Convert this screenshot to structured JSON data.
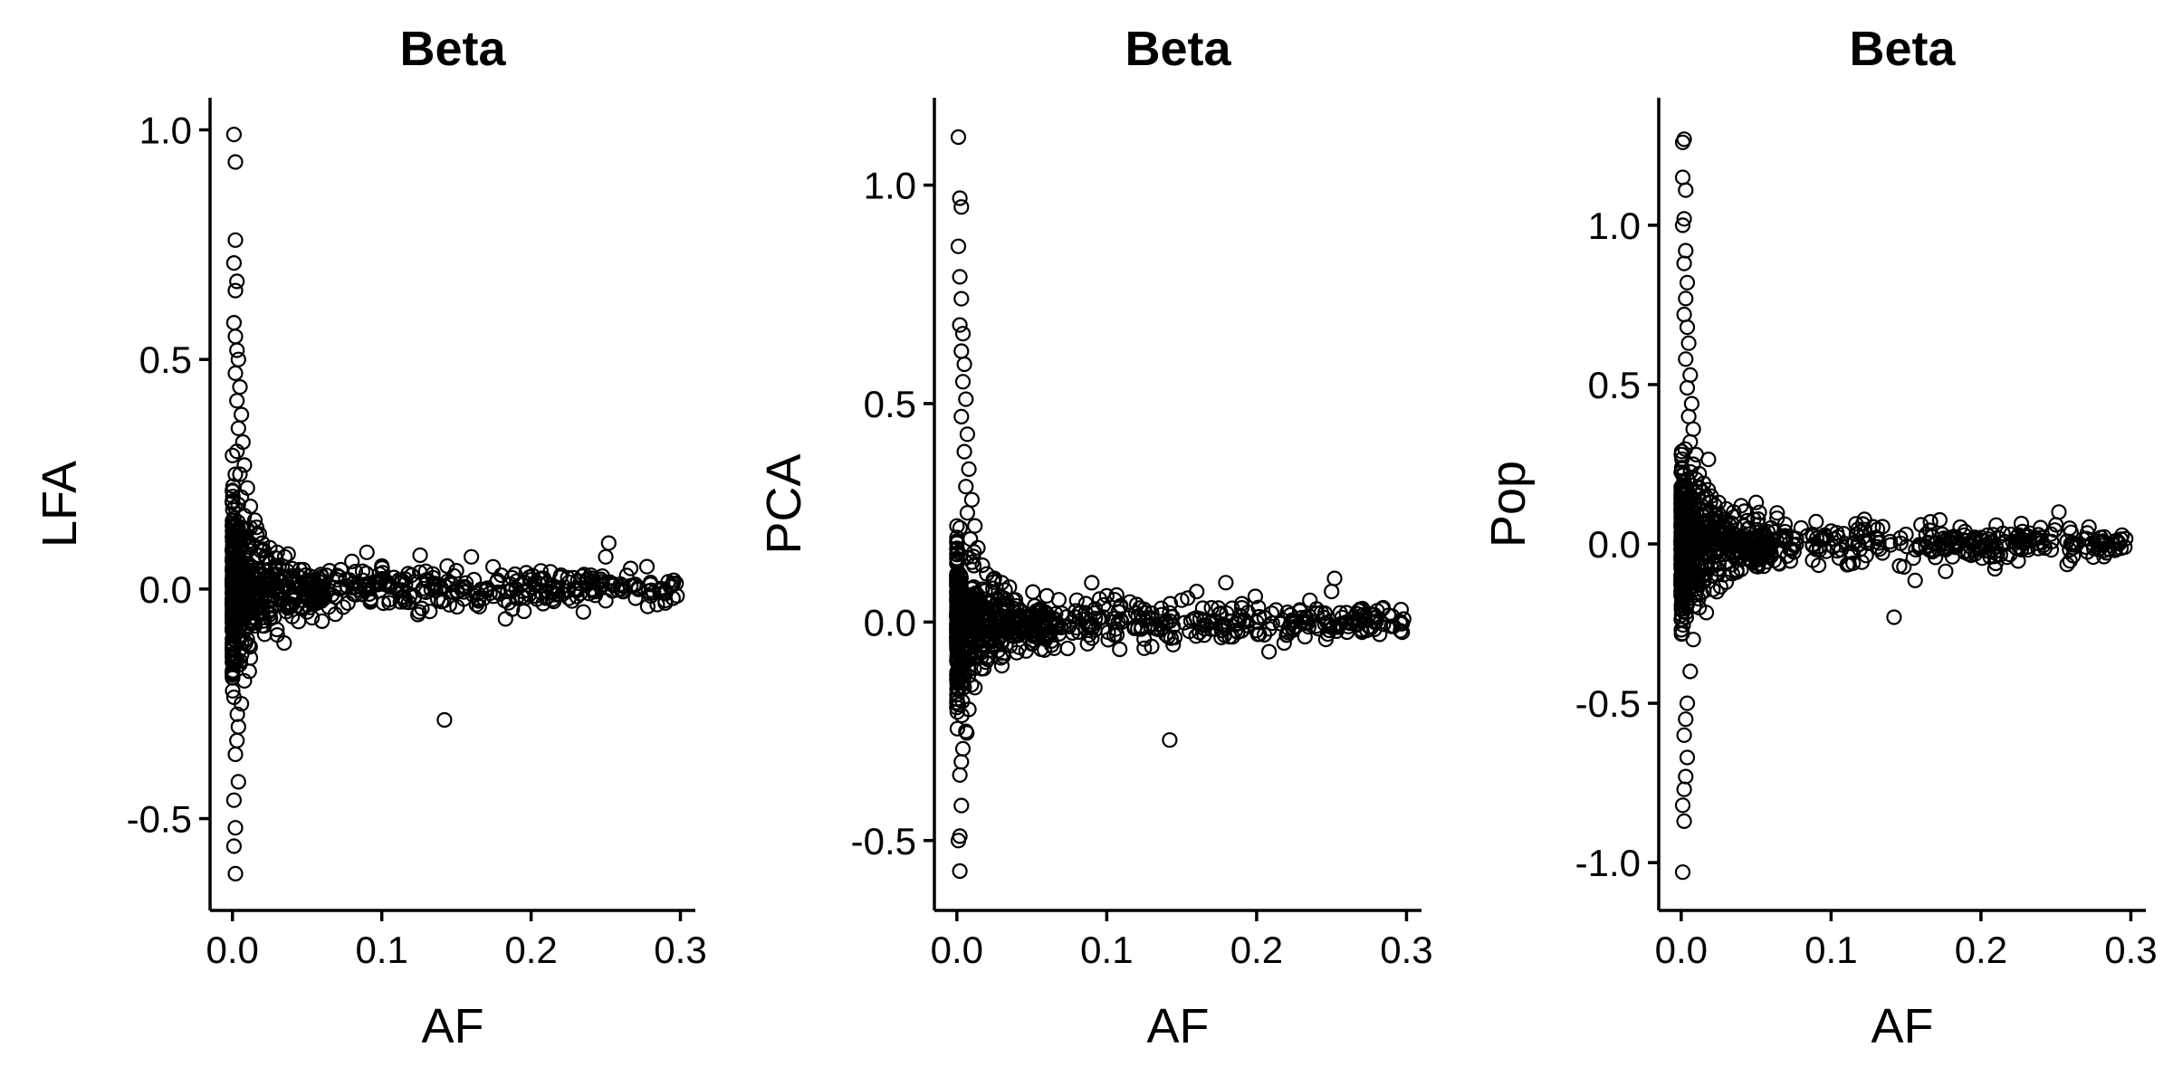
{
  "chart_data": [
    {
      "type": "scatter",
      "title": "Beta",
      "xlabel": "AF",
      "ylabel": "LFA",
      "xlim": [
        -0.015,
        0.31
      ],
      "ylim": [
        -0.7,
        1.07
      ],
      "x_ticks": [
        "0.0",
        "0.1",
        "0.2",
        "0.3"
      ],
      "x_tick_values": [
        0.0,
        0.1,
        0.2,
        0.3
      ],
      "y_ticks": [
        "-0.5",
        "0.0",
        "0.5",
        "1.0"
      ],
      "y_tick_values": [
        -0.5,
        0.0,
        0.5,
        1.0
      ],
      "grid": false,
      "marker": "open-circle",
      "points": [
        [
          0.001,
          0.99
        ],
        [
          0.002,
          0.93
        ],
        [
          0.002,
          0.76
        ],
        [
          0.001,
          0.71
        ],
        [
          0.003,
          0.67
        ],
        [
          0.002,
          0.65
        ],
        [
          0.001,
          0.58
        ],
        [
          0.002,
          0.55
        ],
        [
          0.003,
          0.52
        ],
        [
          0.004,
          0.5
        ],
        [
          0.002,
          0.47
        ],
        [
          0.005,
          0.44
        ],
        [
          0.003,
          0.41
        ],
        [
          0.006,
          0.38
        ],
        [
          0.004,
          0.35
        ],
        [
          0.007,
          0.32
        ],
        [
          0.003,
          0.3
        ],
        [
          0.008,
          0.27
        ],
        [
          0.005,
          0.25
        ],
        [
          0.01,
          0.22
        ],
        [
          0.006,
          0.2
        ],
        [
          0.012,
          0.18
        ],
        [
          0.008,
          0.16
        ],
        [
          0.015,
          0.15
        ],
        [
          0.01,
          0.13
        ],
        [
          0.018,
          0.12
        ],
        [
          0.02,
          0.1
        ],
        [
          0.025,
          0.09
        ],
        [
          0.03,
          0.08
        ],
        [
          0.035,
          0.07
        ],
        [
          0.012,
          -0.15
        ],
        [
          0.008,
          -0.2
        ],
        [
          0.006,
          -0.25
        ],
        [
          0.004,
          -0.3
        ],
        [
          0.003,
          -0.33
        ],
        [
          0.002,
          -0.36
        ],
        [
          0.004,
          -0.42
        ],
        [
          0.001,
          -0.46
        ],
        [
          0.002,
          -0.52
        ],
        [
          0.001,
          -0.56
        ],
        [
          0.002,
          -0.62
        ],
        [
          0.02,
          -0.08
        ],
        [
          0.03,
          -0.1
        ],
        [
          0.04,
          -0.06
        ],
        [
          0.05,
          -0.05
        ],
        [
          0.06,
          -0.07
        ],
        [
          0.065,
          0.04
        ],
        [
          0.07,
          0.02
        ],
        [
          0.08,
          0.06
        ],
        [
          0.09,
          0.08
        ],
        [
          0.1,
          0.05
        ],
        [
          0.105,
          -0.03
        ],
        [
          0.11,
          0.0
        ],
        [
          0.12,
          0.03
        ],
        [
          0.125,
          -0.05
        ],
        [
          0.13,
          0.02
        ],
        [
          0.14,
          0.0
        ],
        [
          0.142,
          -0.285
        ],
        [
          0.15,
          0.04
        ],
        [
          0.16,
          0.07
        ],
        [
          0.165,
          -0.02
        ],
        [
          0.17,
          0.0
        ],
        [
          0.18,
          0.03
        ],
        [
          0.185,
          -0.03
        ],
        [
          0.19,
          0.0
        ],
        [
          0.2,
          0.02
        ],
        [
          0.21,
          -0.02
        ],
        [
          0.22,
          0.03
        ],
        [
          0.23,
          0.0
        ],
        [
          0.235,
          -0.05
        ],
        [
          0.24,
          0.03
        ],
        [
          0.25,
          0.07
        ],
        [
          0.252,
          0.1
        ],
        [
          0.26,
          0.0
        ],
        [
          0.27,
          -0.02
        ],
        [
          0.28,
          0.01
        ],
        [
          0.29,
          -0.01
        ],
        [
          0.295,
          -0.02
        ]
      ]
    },
    {
      "type": "scatter",
      "title": "Beta",
      "xlabel": "AF",
      "ylabel": "PCA",
      "xlim": [
        -0.015,
        0.31
      ],
      "ylim": [
        -0.66,
        1.2
      ],
      "x_ticks": [
        "0.0",
        "0.1",
        "0.2",
        "0.3"
      ],
      "x_tick_values": [
        0.0,
        0.1,
        0.2,
        0.3
      ],
      "y_ticks": [
        "-0.5",
        "0.0",
        "0.5",
        "1.0"
      ],
      "y_tick_values": [
        -0.5,
        0.0,
        0.5,
        1.0
      ],
      "grid": false,
      "marker": "open-circle",
      "points": [
        [
          0.001,
          1.11
        ],
        [
          0.002,
          0.97
        ],
        [
          0.003,
          0.95
        ],
        [
          0.001,
          0.86
        ],
        [
          0.002,
          0.79
        ],
        [
          0.003,
          0.74
        ],
        [
          0.002,
          0.68
        ],
        [
          0.004,
          0.66
        ],
        [
          0.003,
          0.62
        ],
        [
          0.005,
          0.59
        ],
        [
          0.004,
          0.55
        ],
        [
          0.006,
          0.51
        ],
        [
          0.003,
          0.47
        ],
        [
          0.007,
          0.43
        ],
        [
          0.005,
          0.39
        ],
        [
          0.008,
          0.35
        ],
        [
          0.006,
          0.31
        ],
        [
          0.01,
          0.28
        ],
        [
          0.007,
          0.25
        ],
        [
          0.012,
          0.22
        ],
        [
          0.009,
          0.19
        ],
        [
          0.014,
          0.17
        ],
        [
          0.011,
          0.15
        ],
        [
          0.017,
          0.13
        ],
        [
          0.02,
          0.11
        ],
        [
          0.025,
          0.1
        ],
        [
          0.03,
          0.09
        ],
        [
          0.035,
          0.08
        ],
        [
          0.012,
          -0.15
        ],
        [
          0.008,
          -0.2
        ],
        [
          0.006,
          -0.25
        ],
        [
          0.004,
          -0.29
        ],
        [
          0.003,
          -0.32
        ],
        [
          0.002,
          -0.35
        ],
        [
          0.003,
          -0.42
        ],
        [
          0.002,
          -0.49
        ],
        [
          0.001,
          -0.5
        ],
        [
          0.002,
          -0.57
        ],
        [
          0.02,
          -0.08
        ],
        [
          0.03,
          -0.1
        ],
        [
          0.04,
          -0.07
        ],
        [
          0.05,
          -0.05
        ],
        [
          0.06,
          0.06
        ],
        [
          0.065,
          -0.06
        ],
        [
          0.07,
          0.02
        ],
        [
          0.08,
          0.05
        ],
        [
          0.09,
          0.09
        ],
        [
          0.1,
          0.06
        ],
        [
          0.105,
          -0.03
        ],
        [
          0.11,
          0.0
        ],
        [
          0.12,
          0.04
        ],
        [
          0.125,
          -0.06
        ],
        [
          0.13,
          0.02
        ],
        [
          0.14,
          0.0
        ],
        [
          0.142,
          -0.27
        ],
        [
          0.15,
          0.05
        ],
        [
          0.16,
          0.07
        ],
        [
          0.165,
          -0.03
        ],
        [
          0.17,
          0.0
        ],
        [
          0.18,
          0.02
        ],
        [
          0.19,
          -0.02
        ],
        [
          0.2,
          0.0
        ],
        [
          0.21,
          0.02
        ],
        [
          0.22,
          -0.03
        ],
        [
          0.23,
          0.01
        ],
        [
          0.24,
          0.03
        ],
        [
          0.25,
          0.07
        ],
        [
          0.252,
          0.1
        ],
        [
          0.26,
          0.0
        ],
        [
          0.27,
          -0.02
        ],
        [
          0.28,
          0.01
        ],
        [
          0.29,
          -0.01
        ],
        [
          0.296,
          -0.02
        ]
      ]
    },
    {
      "type": "scatter",
      "title": "Beta",
      "xlabel": "AF",
      "ylabel": "Pop",
      "xlim": [
        -0.015,
        0.31
      ],
      "ylim": [
        -1.15,
        1.4
      ],
      "x_ticks": [
        "0.0",
        "0.1",
        "0.2",
        "0.3"
      ],
      "x_tick_values": [
        0.0,
        0.1,
        0.2,
        0.3
      ],
      "y_ticks": [
        "-1.0",
        "-0.5",
        "0.0",
        "0.5",
        "1.0"
      ],
      "y_tick_values": [
        -1.0,
        -0.5,
        0.0,
        0.5,
        1.0
      ],
      "grid": false,
      "marker": "open-circle",
      "points": [
        [
          0.001,
          1.26
        ],
        [
          0.002,
          1.27
        ],
        [
          0.001,
          1.15
        ],
        [
          0.003,
          1.11
        ],
        [
          0.002,
          1.02
        ],
        [
          0.001,
          1.0
        ],
        [
          0.003,
          0.92
        ],
        [
          0.002,
          0.88
        ],
        [
          0.004,
          0.82
        ],
        [
          0.003,
          0.77
        ],
        [
          0.002,
          0.72
        ],
        [
          0.004,
          0.68
        ],
        [
          0.005,
          0.63
        ],
        [
          0.003,
          0.58
        ],
        [
          0.006,
          0.53
        ],
        [
          0.004,
          0.49
        ],
        [
          0.007,
          0.44
        ],
        [
          0.005,
          0.4
        ],
        [
          0.008,
          0.36
        ],
        [
          0.006,
          0.32
        ],
        [
          0.01,
          0.28
        ],
        [
          0.008,
          0.25
        ],
        [
          0.012,
          0.22
        ],
        [
          0.015,
          0.19
        ],
        [
          0.018,
          0.17
        ],
        [
          0.02,
          0.15
        ],
        [
          0.025,
          0.13
        ],
        [
          0.03,
          0.11
        ],
        [
          0.035,
          0.1
        ],
        [
          0.04,
          0.12
        ],
        [
          0.05,
          0.13
        ],
        [
          0.012,
          -0.2
        ],
        [
          0.008,
          -0.3
        ],
        [
          0.006,
          -0.4
        ],
        [
          0.004,
          -0.5
        ],
        [
          0.003,
          -0.55
        ],
        [
          0.002,
          -0.6
        ],
        [
          0.004,
          -0.67
        ],
        [
          0.003,
          -0.73
        ],
        [
          0.002,
          -0.77
        ],
        [
          0.001,
          -0.82
        ],
        [
          0.002,
          -0.87
        ],
        [
          0.001,
          -1.03
        ],
        [
          0.02,
          -0.1
        ],
        [
          0.03,
          -0.12
        ],
        [
          0.04,
          -0.08
        ],
        [
          0.05,
          -0.07
        ],
        [
          0.06,
          0.05
        ],
        [
          0.065,
          -0.06
        ],
        [
          0.07,
          0.02
        ],
        [
          0.08,
          0.05
        ],
        [
          0.09,
          0.07
        ],
        [
          0.1,
          0.04
        ],
        [
          0.11,
          0.0
        ],
        [
          0.12,
          0.04
        ],
        [
          0.13,
          0.02
        ],
        [
          0.142,
          -0.23
        ],
        [
          0.15,
          0.03
        ],
        [
          0.16,
          0.06
        ],
        [
          0.17,
          0.0
        ],
        [
          0.18,
          0.02
        ],
        [
          0.19,
          0.01
        ],
        [
          0.2,
          0.02
        ],
        [
          0.21,
          -0.01
        ],
        [
          0.22,
          0.03
        ],
        [
          0.23,
          0.01
        ],
        [
          0.24,
          0.02
        ],
        [
          0.25,
          0.06
        ],
        [
          0.252,
          0.1
        ],
        [
          0.26,
          0.0
        ],
        [
          0.27,
          -0.01
        ],
        [
          0.28,
          0.02
        ],
        [
          0.29,
          0.01
        ],
        [
          0.296,
          -0.01
        ]
      ]
    }
  ]
}
